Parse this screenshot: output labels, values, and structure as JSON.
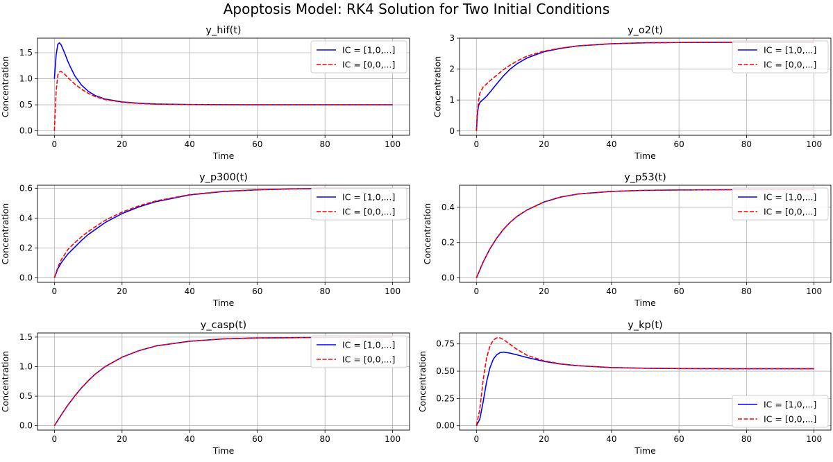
{
  "figure": {
    "title": "Apoptosis Model: RK4 Solution for Two Initial Conditions"
  },
  "legend_labels": [
    "IC = [1,0,...]",
    "IC = [0,0,...]"
  ],
  "colors": {
    "series_1": "#0000ff",
    "series_2": "#ff0000",
    "grid": "#b0b0b0"
  },
  "chart_data": [
    {
      "type": "line",
      "title": "y_hif(t)",
      "xlabel": "Time",
      "ylabel": "Concentration",
      "xlim": [
        -5,
        105
      ],
      "ylim": [
        -0.085,
        1.78
      ],
      "xticks": [
        0,
        20,
        40,
        60,
        80,
        100
      ],
      "xtick_labels": [
        "0",
        "20",
        "40",
        "60",
        "80",
        "100"
      ],
      "yticks": [
        0,
        0.5,
        1.0,
        1.5
      ],
      "ytick_labels": [
        "0.0",
        "0.5",
        "1.0",
        "1.5"
      ],
      "grid": true,
      "legend_position": "upper right",
      "series": [
        {
          "name": "IC = [1,0,...]",
          "style": "solid",
          "x": [
            0,
            0.5,
            1,
            1.5,
            2,
            3,
            4,
            5,
            6,
            8,
            10,
            12,
            15,
            20,
            25,
            30,
            40,
            50,
            60,
            70,
            80,
            90,
            100
          ],
          "y": [
            1.0,
            1.45,
            1.66,
            1.69,
            1.65,
            1.5,
            1.33,
            1.19,
            1.06,
            0.88,
            0.76,
            0.68,
            0.61,
            0.555,
            0.53,
            0.515,
            0.505,
            0.502,
            0.5,
            0.5,
            0.5,
            0.5,
            0.5
          ]
        },
        {
          "name": "IC = [0,0,...]",
          "style": "dashed",
          "x": [
            0,
            0.5,
            1,
            1.5,
            2,
            3,
            4,
            5,
            6,
            8,
            10,
            12,
            15,
            20,
            25,
            30,
            40,
            50,
            60,
            70,
            80,
            90,
            100
          ],
          "y": [
            0.0,
            0.75,
            1.07,
            1.13,
            1.14,
            1.09,
            1.02,
            0.96,
            0.9,
            0.8,
            0.72,
            0.66,
            0.6,
            0.55,
            0.525,
            0.512,
            0.504,
            0.501,
            0.5,
            0.5,
            0.5,
            0.5,
            0.5
          ]
        }
      ]
    },
    {
      "type": "line",
      "title": "y_o2(t)",
      "xlabel": "Time",
      "ylabel": "Concentration",
      "xlim": [
        -5,
        105
      ],
      "ylim": [
        -0.14,
        3.0
      ],
      "xticks": [
        0,
        20,
        40,
        60,
        80,
        100
      ],
      "xtick_labels": [
        "0",
        "20",
        "40",
        "60",
        "80",
        "100"
      ],
      "yticks": [
        0,
        1,
        2,
        3
      ],
      "ytick_labels": [
        "0",
        "1",
        "2",
        "3"
      ],
      "grid": true,
      "legend_position": "upper right",
      "series": [
        {
          "name": "IC = [1,0,...]",
          "style": "solid",
          "x": [
            0,
            0.3,
            0.6,
            1,
            2,
            3,
            4,
            6,
            8,
            10,
            12,
            15,
            20,
            25,
            30,
            40,
            50,
            60,
            70,
            80,
            90,
            100
          ],
          "y": [
            0.0,
            0.55,
            0.8,
            0.92,
            1.02,
            1.12,
            1.25,
            1.52,
            1.78,
            2.0,
            2.17,
            2.36,
            2.56,
            2.67,
            2.75,
            2.82,
            2.85,
            2.86,
            2.865,
            2.866,
            2.867,
            2.867
          ]
        },
        {
          "name": "IC = [0,0,...]",
          "style": "dashed",
          "x": [
            0,
            0.3,
            0.6,
            1,
            2,
            3,
            4,
            6,
            8,
            10,
            12,
            15,
            20,
            25,
            30,
            40,
            50,
            60,
            70,
            80,
            90,
            100
          ],
          "y": [
            0.0,
            0.6,
            0.95,
            1.22,
            1.42,
            1.52,
            1.62,
            1.8,
            1.98,
            2.13,
            2.26,
            2.42,
            2.58,
            2.68,
            2.75,
            2.82,
            2.85,
            2.86,
            2.865,
            2.866,
            2.867,
            2.867
          ]
        }
      ]
    },
    {
      "type": "line",
      "title": "y_p300(t)",
      "xlabel": "Time",
      "ylabel": "Concentration",
      "xlim": [
        -5,
        105
      ],
      "ylim": [
        -0.03,
        0.62
      ],
      "xticks": [
        0,
        20,
        40,
        60,
        80,
        100
      ],
      "xtick_labels": [
        "0",
        "20",
        "40",
        "60",
        "80",
        "100"
      ],
      "yticks": [
        0,
        0.2,
        0.4,
        0.6
      ],
      "ytick_labels": [
        "0.0",
        "0.2",
        "0.4",
        "0.6"
      ],
      "grid": true,
      "legend_position": "upper right",
      "series": [
        {
          "name": "IC = [1,0,...]",
          "style": "solid",
          "x": [
            0,
            1,
            2,
            4,
            6,
            8,
            10,
            15,
            20,
            25,
            30,
            40,
            50,
            60,
            70,
            80,
            90,
            100
          ],
          "y": [
            0.0,
            0.06,
            0.1,
            0.16,
            0.205,
            0.25,
            0.29,
            0.37,
            0.43,
            0.475,
            0.51,
            0.555,
            0.578,
            0.589,
            0.595,
            0.598,
            0.599,
            0.6
          ]
        },
        {
          "name": "IC = [0,0,...]",
          "style": "dashed",
          "x": [
            0,
            1,
            2,
            4,
            6,
            8,
            10,
            15,
            20,
            25,
            30,
            40,
            50,
            60,
            70,
            80,
            90,
            100
          ],
          "y": [
            0.0,
            0.07,
            0.12,
            0.19,
            0.235,
            0.275,
            0.31,
            0.385,
            0.44,
            0.482,
            0.515,
            0.557,
            0.579,
            0.59,
            0.595,
            0.598,
            0.599,
            0.6
          ]
        }
      ]
    },
    {
      "type": "line",
      "title": "y_p53(t)",
      "xlabel": "Time",
      "ylabel": "Concentration",
      "xlim": [
        -5,
        105
      ],
      "ylim": [
        -0.025,
        0.525
      ],
      "xticks": [
        0,
        20,
        40,
        60,
        80,
        100
      ],
      "xtick_labels": [
        "0",
        "20",
        "40",
        "60",
        "80",
        "100"
      ],
      "yticks": [
        0,
        0.2,
        0.4
      ],
      "ytick_labels": [
        "0.0",
        "0.2",
        "0.4"
      ],
      "grid": true,
      "legend_position": "upper right",
      "series": [
        {
          "name": "IC = [1,0,...]",
          "style": "solid",
          "x": [
            0,
            2,
            4,
            6,
            8,
            10,
            12,
            15,
            20,
            25,
            30,
            40,
            50,
            60,
            70,
            80,
            90,
            100
          ],
          "y": [
            0.0,
            0.09,
            0.165,
            0.225,
            0.275,
            0.315,
            0.348,
            0.385,
            0.43,
            0.458,
            0.475,
            0.49,
            0.496,
            0.498,
            0.499,
            0.5,
            0.5,
            0.5
          ]
        },
        {
          "name": "IC = [0,0,...]",
          "style": "dashed",
          "x": [
            0,
            2,
            4,
            6,
            8,
            10,
            12,
            15,
            20,
            25,
            30,
            40,
            50,
            60,
            70,
            80,
            90,
            100
          ],
          "y": [
            0.0,
            0.09,
            0.165,
            0.225,
            0.275,
            0.315,
            0.348,
            0.385,
            0.43,
            0.458,
            0.475,
            0.49,
            0.496,
            0.498,
            0.499,
            0.5,
            0.5,
            0.5
          ]
        }
      ]
    },
    {
      "type": "line",
      "title": "y_casp(t)",
      "xlabel": "Time",
      "ylabel": "Concentration",
      "xlim": [
        -5,
        105
      ],
      "ylim": [
        -0.075,
        1.57
      ],
      "xticks": [
        0,
        20,
        40,
        60,
        80,
        100
      ],
      "xtick_labels": [
        "0",
        "20",
        "40",
        "60",
        "80",
        "100"
      ],
      "yticks": [
        0,
        0.5,
        1.0,
        1.5
      ],
      "ytick_labels": [
        "0.0",
        "0.5",
        "1.0",
        "1.5"
      ],
      "grid": true,
      "legend_position": "upper right",
      "series": [
        {
          "name": "IC = [1,0,...]",
          "style": "solid",
          "x": [
            0,
            2,
            4,
            6,
            8,
            10,
            12,
            15,
            20,
            25,
            30,
            40,
            50,
            60,
            70,
            80,
            90,
            100
          ],
          "y": [
            0.0,
            0.18,
            0.35,
            0.5,
            0.64,
            0.76,
            0.87,
            1.0,
            1.16,
            1.27,
            1.35,
            1.43,
            1.47,
            1.485,
            1.49,
            1.495,
            1.497,
            1.5
          ]
        },
        {
          "name": "IC = [0,0,...]",
          "style": "dashed",
          "x": [
            0,
            2,
            4,
            6,
            8,
            10,
            12,
            15,
            20,
            25,
            30,
            40,
            50,
            60,
            70,
            80,
            90,
            100
          ],
          "y": [
            0.0,
            0.18,
            0.35,
            0.5,
            0.64,
            0.76,
            0.87,
            1.0,
            1.16,
            1.27,
            1.35,
            1.43,
            1.47,
            1.485,
            1.49,
            1.495,
            1.497,
            1.5
          ]
        }
      ]
    },
    {
      "type": "line",
      "title": "y_kp(t)",
      "xlabel": "Time",
      "ylabel": "Concentration",
      "xlim": [
        -5,
        105
      ],
      "ylim": [
        -0.04,
        0.85
      ],
      "xticks": [
        0,
        20,
        40,
        60,
        80,
        100
      ],
      "xtick_labels": [
        "0",
        "20",
        "40",
        "60",
        "80",
        "100"
      ],
      "yticks": [
        0,
        0.25,
        0.5,
        0.75
      ],
      "ytick_labels": [
        "0.00",
        "0.25",
        "0.50",
        "0.75"
      ],
      "grid": true,
      "legend_position": "lower right",
      "series": [
        {
          "name": "IC = [1,0,...]",
          "style": "solid",
          "x": [
            0,
            1,
            2,
            3,
            4,
            5,
            6,
            7,
            8,
            10,
            12,
            15,
            20,
            25,
            30,
            40,
            50,
            60,
            70,
            80,
            90,
            100
          ],
          "y": [
            0.0,
            0.06,
            0.22,
            0.4,
            0.53,
            0.61,
            0.65,
            0.67,
            0.675,
            0.665,
            0.65,
            0.625,
            0.59,
            0.565,
            0.55,
            0.533,
            0.527,
            0.524,
            0.523,
            0.522,
            0.522,
            0.522
          ]
        },
        {
          "name": "IC = [0,0,...]",
          "style": "dashed",
          "x": [
            0,
            1,
            2,
            3,
            4,
            5,
            6,
            7,
            8,
            10,
            12,
            15,
            20,
            25,
            30,
            40,
            50,
            60,
            70,
            80,
            90,
            100
          ],
          "y": [
            0.0,
            0.15,
            0.42,
            0.62,
            0.73,
            0.785,
            0.805,
            0.805,
            0.79,
            0.745,
            0.7,
            0.645,
            0.595,
            0.567,
            0.55,
            0.533,
            0.527,
            0.524,
            0.523,
            0.522,
            0.522,
            0.522
          ]
        }
      ]
    }
  ]
}
